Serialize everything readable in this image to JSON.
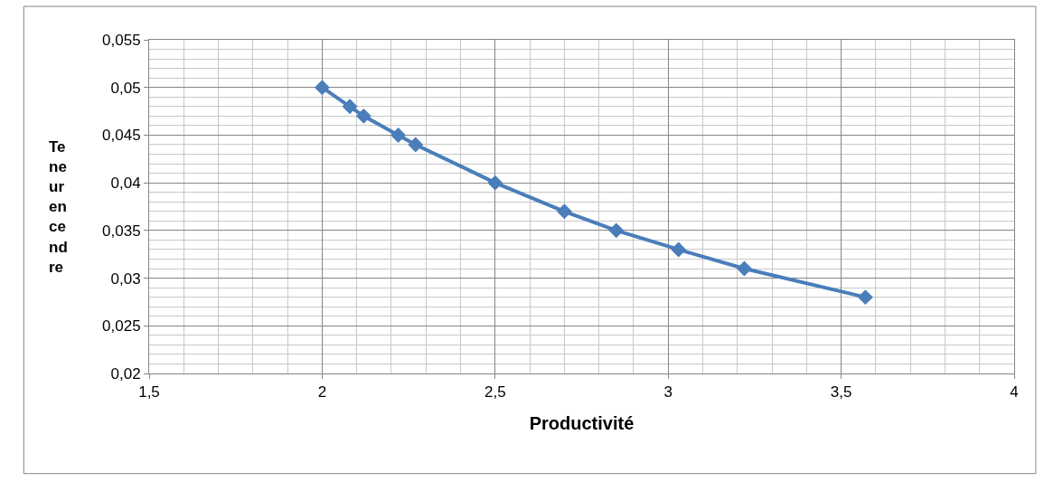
{
  "chart_data": {
    "type": "line",
    "xlabel": "Productivité",
    "ylabel": "Teneur en cendre",
    "x": [
      2.0,
      2.08,
      2.12,
      2.22,
      2.27,
      2.5,
      2.7,
      2.85,
      3.03,
      3.22,
      3.57
    ],
    "series": [
      {
        "color": "#4a7ebb",
        "values": [
          0.05,
          0.048,
          0.047,
          0.045,
          0.044,
          0.04,
          0.037,
          0.035,
          0.033,
          0.031,
          0.028
        ]
      }
    ],
    "xlim": [
      1.5,
      4
    ],
    "ylim": [
      0.02,
      0.055
    ],
    "xticks": [
      {
        "value": 1.5,
        "label": "1,5"
      },
      2,
      {
        "value": 2.5,
        "label": "2,5"
      },
      3,
      {
        "value": 3.5,
        "label": "3,5"
      },
      4
    ],
    "yticks": [
      {
        "value": 0.02,
        "label": "0,02"
      },
      {
        "value": 0.025,
        "label": "0,025"
      },
      {
        "value": 0.03,
        "label": "0,03"
      },
      {
        "value": 0.035,
        "label": "0,035"
      },
      {
        "value": 0.04,
        "label": "0,04"
      },
      {
        "value": 0.045,
        "label": "0,045"
      },
      {
        "value": 0.05,
        "label": "0,05"
      },
      {
        "value": 0.055,
        "label": "0,055"
      }
    ],
    "grid": true,
    "marker": "diamond",
    "line_style": "solid"
  }
}
